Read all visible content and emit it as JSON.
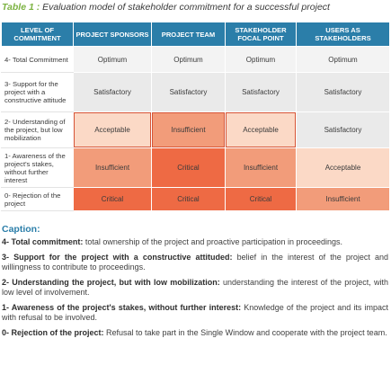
{
  "table_title": {
    "label": "Table 1 :",
    "text": " Evaluation model of stakeholder commitment for a successful project"
  },
  "table": {
    "headers": [
      "LEVEL OF COMMITMENT",
      "PROJECT SPONSORS",
      "PROJECT TEAM",
      "STAKEHOLDER FOCAL POINT",
      "USERS AS STAKEHOLDERS"
    ],
    "rows": [
      {
        "label": "4- Total Commitment",
        "cells": [
          "Optimum",
          "Optimum",
          "Optimum",
          "Optimum"
        ]
      },
      {
        "label": "3- Support for the project with a constructive attitude",
        "cells": [
          "Satisfactory",
          "Satisfactory",
          "Satisfactory",
          "Satisfactory"
        ]
      },
      {
        "label": "2- Understanding of the project, but low mobilization",
        "cells": [
          "Acceptable",
          "Insufficient",
          "Acceptable",
          "Satisfactory"
        ]
      },
      {
        "label": "1- Awareness of the project's stakes, without further interest",
        "cells": [
          "Insufficient",
          "Critical",
          "Insufficient",
          "Acceptable"
        ]
      },
      {
        "label": "0- Rejection of the project",
        "cells": [
          "Critical",
          "Critical",
          "Critical",
          "Insufficient"
        ]
      }
    ]
  },
  "level_colors": {
    "Optimum": "#f3f3f3",
    "Satisfactory": "#eaeaea",
    "Acceptable": "#fbd9c6",
    "Insufficient": "#f29c7a",
    "Critical": "#ee6a44",
    "header": "#2b7ea9",
    "caption_title": "#2b7ea9",
    "title_label": "#7cb342"
  },
  "caption": {
    "title": "Caption:",
    "items": [
      {
        "term": "4- Total commitment:",
        "desc": " total ownership of the project and proactive participation in proceedings."
      },
      {
        "term": "3- Support for the project with a constructive attituded:",
        "desc": " belief in the interest of the project and willingness to contribute to proceedings."
      },
      {
        "term": "2- Understanding  the project, but with low mobilization:",
        "desc": " understanding the interest of the project, with low level of involvement."
      },
      {
        "term": "1- Awareness of the project's stakes, without further interest:",
        "desc": " Knowledge of the project and its impact with refusal to be involved."
      },
      {
        "term": "0- Rejection of the project:",
        "desc": " Refusal to take part in the Single Window and cooperate with the project team."
      }
    ]
  }
}
